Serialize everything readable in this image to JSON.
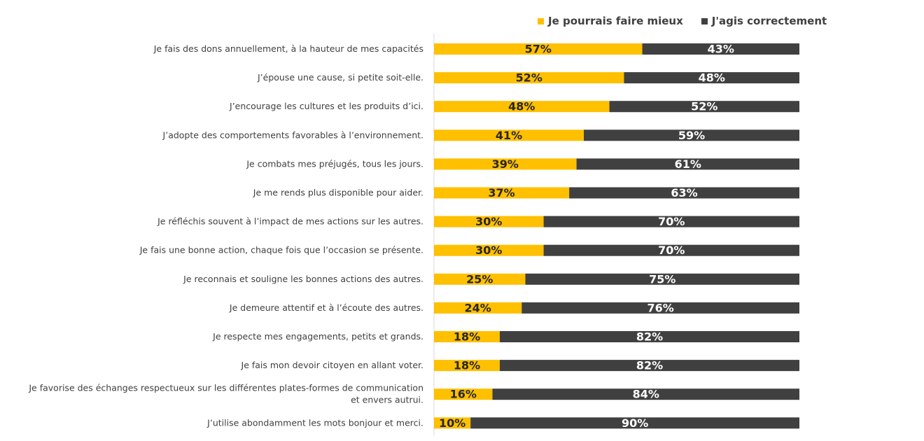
{
  "chart_data": {
    "type": "bar",
    "orientation": "horizontal",
    "stacked": true,
    "percent_labels": true,
    "legend_position": "top",
    "categories": [
      "Je fais des dons annuellement, à la hauteur de mes capacités",
      "J’épouse une cause, si petite soit-elle.",
      "J’encourage les cultures et les produits d’ici.",
      "J’adopte des comportements favorables à l’environnement.",
      "Je combats mes préjugés, tous les jours.",
      "Je me rends plus disponible pour aider.",
      "Je réfléchis souvent à l’impact de mes actions sur les autres.",
      "Je fais une bonne action, chaque fois que l’occasion se présente.",
      "Je reconnais et souligne les bonnes actions des autres.",
      "Je demeure attentif et à l’écoute des autres.",
      "Je respecte mes engagements, petits et grands.",
      "Je fais mon devoir citoyen en allant voter.",
      "Je favorise des échanges respectueux sur les différentes plates-formes de communication|et envers autrui.",
      "J’utilise abondamment les mots bonjour et merci."
    ],
    "series": [
      {
        "name": "Je pourrais faire mieux",
        "color": "#FFC000",
        "label_color": "#262626",
        "values": [
          57,
          52,
          48,
          41,
          39,
          37,
          30,
          30,
          25,
          24,
          18,
          18,
          16,
          10
        ]
      },
      {
        "name": "J'agis correctement",
        "color": "#404040",
        "label_color": "#ffffff",
        "values": [
          43,
          48,
          52,
          59,
          61,
          63,
          70,
          70,
          75,
          76,
          82,
          82,
          84,
          90
        ]
      }
    ],
    "xlim": [
      0,
      100
    ]
  }
}
